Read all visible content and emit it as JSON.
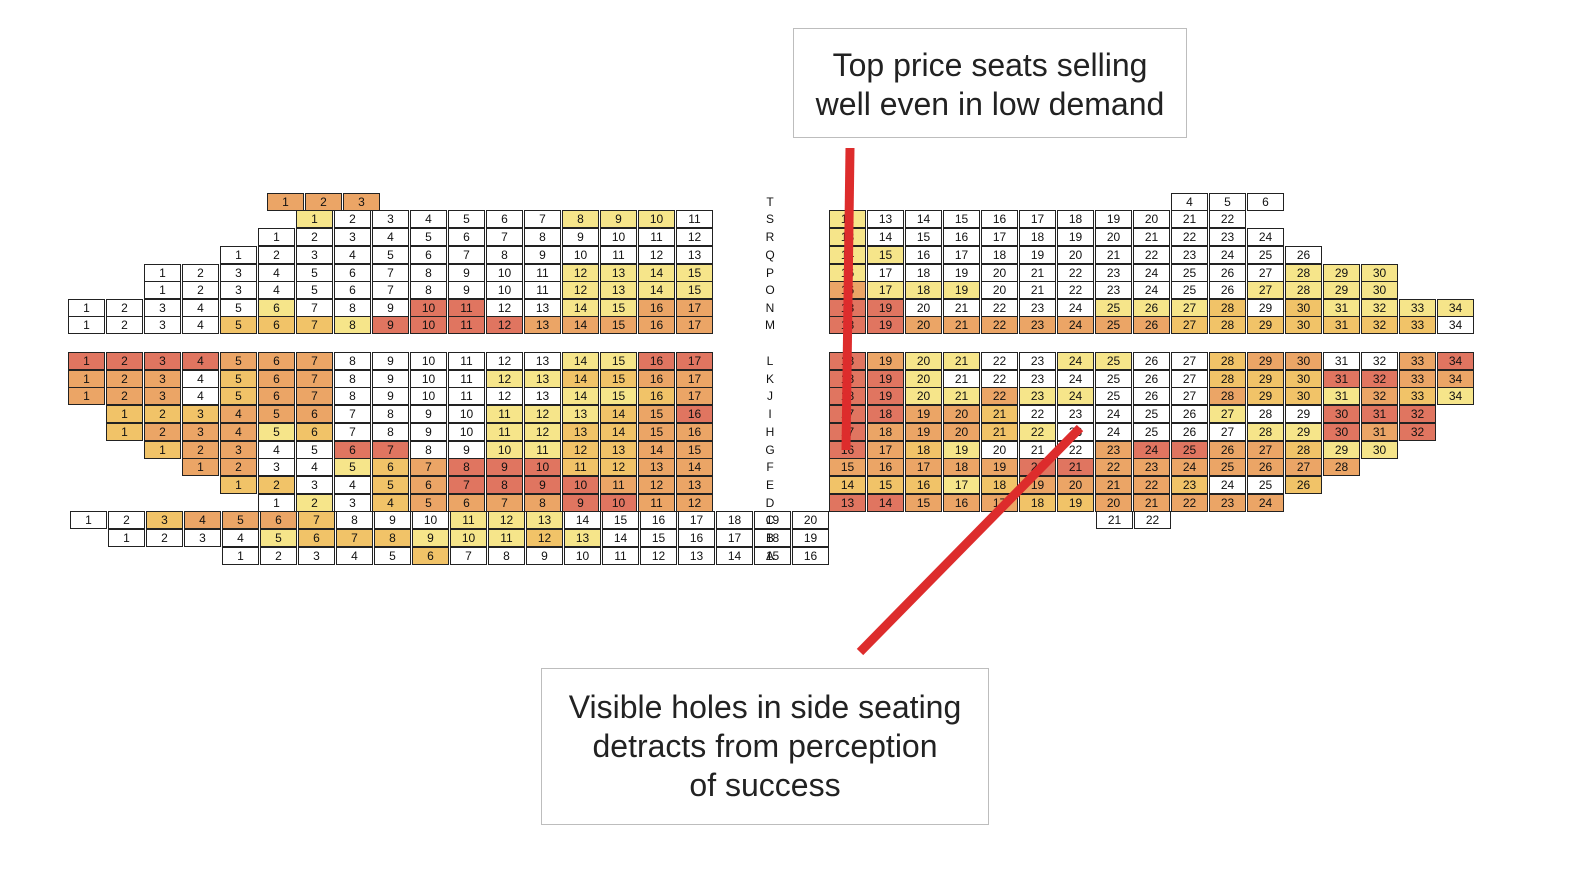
{
  "callouts": {
    "top": {
      "lines": [
        "Top price seats selling",
        "well even in low demand"
      ]
    },
    "bottom": {
      "lines": [
        "Visible holes in side seating",
        "detracts from perception",
        "of success"
      ]
    }
  },
  "colors": {
    "0": "#ffffff",
    "1": "#f6e58a",
    "2": "#f1c368",
    "3": "#eba566",
    "4": "#e07560",
    "arrow": "#dd2c2c",
    "border": "#222222"
  },
  "legend_note": "sale level codes: 0 = unsold (white), 1 = light yellow, 2 = amber, 3 = orange, 4 = red",
  "rows": [
    {
      "row": "T",
      "left": {
        "start": 1,
        "end": 3,
        "levels": "333"
      },
      "center": null,
      "right": {
        "start": 4,
        "end": 6,
        "levels": "000"
      }
    },
    {
      "row": "S",
      "left": {
        "start": 1,
        "end": 11,
        "levels": "10000001110"
      },
      "center": {
        "start": 12,
        "end": 12,
        "levels": "1"
      },
      "right": {
        "start": 13,
        "end": 22,
        "levels": "0000000000"
      }
    },
    {
      "row": "R",
      "left": {
        "start": 1,
        "end": 12,
        "levels": "000000000000"
      },
      "center": {
        "start": 13,
        "end": 13,
        "levels": "1"
      },
      "right": {
        "start": 14,
        "end": 24,
        "levels": "00000000000"
      }
    },
    {
      "row": "Q",
      "left": {
        "start": 1,
        "end": 13,
        "levels": "0000000000000"
      },
      "center": {
        "start": 14,
        "end": 14,
        "levels": "1"
      },
      "right": {
        "start": 15,
        "end": 26,
        "levels": "100000000000"
      }
    },
    {
      "row": "P",
      "left": {
        "start": 1,
        "end": 15,
        "levels": "000000000001111"
      },
      "center": {
        "start": 16,
        "end": 16,
        "levels": "1"
      },
      "right": {
        "start": 17,
        "end": 30,
        "levels": "00000000000111"
      }
    },
    {
      "row": "O",
      "left": {
        "start": 1,
        "end": 15,
        "levels": "000000000001111"
      },
      "center": {
        "start": 16,
        "end": 16,
        "levels": "3"
      },
      "right": {
        "start": 17,
        "end": 30,
        "levels": "11100000001111"
      }
    },
    {
      "row": "N",
      "left": {
        "start": 1,
        "end": 17,
        "levels": "00000100044001133"
      },
      "center": {
        "start": 18,
        "end": 18,
        "levels": "4"
      },
      "right": {
        "start": 19,
        "end": 34,
        "levels": "4000001112021111"
      }
    },
    {
      "row": "M",
      "left": {
        "start": 1,
        "end": 17,
        "levels": "00002221444433333"
      },
      "center": {
        "start": 18,
        "end": 18,
        "levels": "4"
      },
      "right": {
        "start": 19,
        "end": 34,
        "levels": "4333333322222220"
      }
    },
    {
      "row": "L",
      "left": {
        "start": 1,
        "end": 17,
        "levels": "44443330000001144"
      },
      "center": {
        "start": 18,
        "end": 18,
        "levels": "4"
      },
      "right": {
        "start": 19,
        "end": 34,
        "levels": "3110011002330034"
      }
    },
    {
      "row": "K",
      "left": {
        "start": 1,
        "end": 17,
        "levels": "33302330000112233"
      },
      "center": {
        "start": 18,
        "end": 18,
        "levels": "4"
      },
      "right": {
        "start": 19,
        "end": 34,
        "levels": "4100000002224433"
      }
    },
    {
      "row": "J",
      "left": {
        "start": 1,
        "end": 17,
        "levels": "33302330000001123"
      },
      "center": {
        "start": 18,
        "end": 18,
        "levels": "4"
      },
      "right": {
        "start": 19,
        "end": 34,
        "levels": "4113110003221321"
      }
    },
    {
      "row": "I",
      "left": {
        "start": 1,
        "end": 16,
        "levels": "2223330000111234"
      },
      "center": {
        "start": 17,
        "end": 17,
        "levels": "4"
      },
      "right": {
        "start": 18,
        "end": 32,
        "levels": "433200000100444"
      }
    },
    {
      "row": "H",
      "left": {
        "start": 1,
        "end": 16,
        "levels": "2333120000112233"
      },
      "center": {
        "start": 17,
        "end": 17,
        "levels": "4"
      },
      "right": {
        "start": 18,
        "end": 32,
        "levels": "333210000011434"
      }
    },
    {
      "row": "G",
      "left": {
        "start": 1,
        "end": 15,
        "levels": "233004400112233"
      },
      "center": {
        "start": 16,
        "end": 16,
        "levels": "4"
      },
      "right": {
        "start": 17,
        "end": 30,
        "levels": "32100034433211"
      }
    },
    {
      "row": "F",
      "left": {
        "start": 1,
        "end": 14,
        "levels": "33001234442233"
      },
      "center": {
        "start": 15,
        "end": 15,
        "levels": "3"
      },
      "right": {
        "start": 16,
        "end": 28,
        "levels": "3333443333333"
      }
    },
    {
      "row": "E",
      "left": {
        "start": 1,
        "end": 13,
        "levels": "2200234444333"
      },
      "center": {
        "start": 14,
        "end": 14,
        "levels": "2"
      },
      "right": {
        "start": 15,
        "end": 26,
        "levels": "221233332002"
      }
    },
    {
      "row": "D",
      "left": {
        "start": 1,
        "end": 12,
        "levels": "010233334433"
      },
      "center": {
        "start": 13,
        "end": 13,
        "levels": "4"
      },
      "right": {
        "start": 14,
        "end": 24,
        "levels": "43332233333"
      }
    },
    {
      "row": "C",
      "left": {
        "start": 1,
        "end": 20,
        "levels": "00233320001110000000"
      },
      "center": null,
      "right": {
        "start": 21,
        "end": 22,
        "levels": "00"
      }
    },
    {
      "row": "B",
      "left": {
        "start": 1,
        "end": 19,
        "levels": "0000122211121000000"
      },
      "center": null,
      "right": null
    },
    {
      "row": "A",
      "left": {
        "start": 1,
        "end": 16,
        "levels": "0000020000000000"
      },
      "center": null,
      "right": null
    }
  ]
}
